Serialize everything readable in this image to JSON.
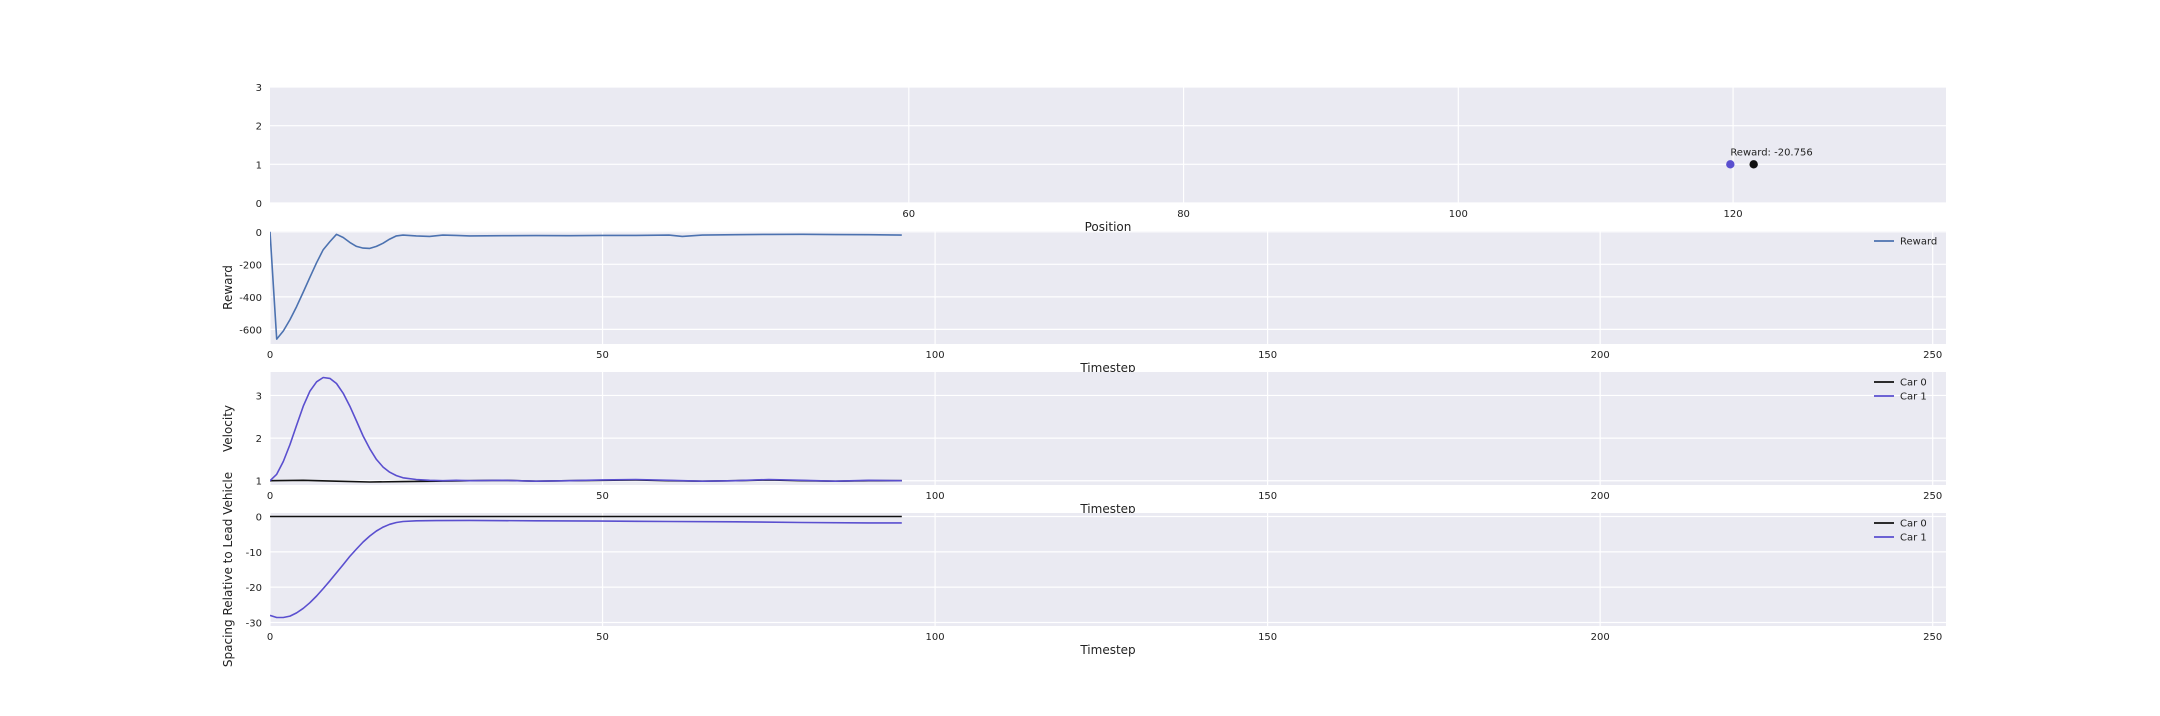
{
  "chart_data": [
    {
      "type": "scatter",
      "xlabel": "Position",
      "ylabel": "",
      "xlim": [
        13.5,
        135.5
      ],
      "ylim": [
        0,
        3
      ],
      "xticks": [
        60,
        80,
        100,
        120
      ],
      "yticks": [
        0,
        1,
        2,
        3
      ],
      "grid": true,
      "points": [
        {
          "x": 119.8,
          "y": 1,
          "color": "#5a4fcf"
        },
        {
          "x": 121.5,
          "y": 1,
          "color": "#111111"
        }
      ],
      "annotation": {
        "text": "Reward: -20.756",
        "x": 119.8,
        "y": 1.12
      }
    },
    {
      "type": "line",
      "xlabel": "Timestep",
      "ylabel": "Reward",
      "xlim": [
        0,
        252
      ],
      "ylim": [
        -690,
        5
      ],
      "xticks": [
        0,
        50,
        100,
        150,
        200,
        250
      ],
      "yticks": [
        0,
        -200,
        -400,
        -600
      ],
      "grid": true,
      "legend": "top-right",
      "series": [
        {
          "name": "Reward",
          "color": "#4c72b0",
          "x": [
            0,
            1,
            2,
            3,
            4,
            5,
            6,
            7,
            8,
            9,
            10,
            11,
            12,
            13,
            14,
            15,
            16,
            17,
            18,
            19,
            20,
            22,
            24,
            26,
            28,
            30,
            35,
            40,
            45,
            50,
            55,
            60,
            62,
            65,
            70,
            75,
            80,
            85,
            90,
            95
          ],
          "y": [
            0,
            -660,
            -610,
            -540,
            -460,
            -370,
            -280,
            -190,
            -110,
            -60,
            -15,
            -35,
            -65,
            -90,
            -100,
            -102,
            -90,
            -70,
            -45,
            -25,
            -20,
            -25,
            -28,
            -20,
            -22,
            -25,
            -24,
            -23,
            -24,
            -22,
            -22,
            -20,
            -28,
            -20,
            -18,
            -16,
            -15,
            -17,
            -18,
            -20
          ]
        }
      ]
    },
    {
      "type": "line",
      "xlabel": "Timestep",
      "ylabel": "Velocity",
      "xlim": [
        0,
        252
      ],
      "ylim": [
        0.9,
        3.55
      ],
      "xticks": [
        0,
        50,
        100,
        150,
        200,
        250
      ],
      "yticks": [
        1,
        2,
        3
      ],
      "grid": true,
      "legend": "top-right",
      "series": [
        {
          "name": "Car 0",
          "color": "#111111",
          "x": [
            0,
            5,
            10,
            15,
            20,
            25,
            30,
            35,
            40,
            45,
            50,
            55,
            60,
            65,
            70,
            75,
            80,
            85,
            90,
            95
          ],
          "y": [
            1.0,
            1.01,
            0.99,
            0.97,
            0.98,
            0.99,
            1.0,
            1.01,
            0.99,
            1.0,
            1.01,
            1.02,
            1.0,
            0.99,
            1.0,
            1.02,
            1.0,
            0.99,
            1.0,
            1.0
          ]
        },
        {
          "name": "Car 1",
          "color": "#5a4fcf",
          "x": [
            0,
            1,
            2,
            3,
            4,
            5,
            6,
            7,
            8,
            9,
            10,
            11,
            12,
            13,
            14,
            15,
            16,
            17,
            18,
            19,
            20,
            22,
            24,
            26,
            28,
            30,
            35,
            40,
            45,
            50,
            55,
            60,
            65,
            70,
            75,
            80,
            85,
            90,
            95
          ],
          "y": [
            1.0,
            1.15,
            1.45,
            1.85,
            2.3,
            2.75,
            3.1,
            3.32,
            3.42,
            3.4,
            3.28,
            3.05,
            2.75,
            2.4,
            2.05,
            1.75,
            1.5,
            1.32,
            1.2,
            1.12,
            1.07,
            1.03,
            1.01,
            1.0,
            1.01,
            1.0,
            1.01,
            0.99,
            1.0,
            1.02,
            1.03,
            1.01,
            0.99,
            1.0,
            1.03,
            1.01,
            0.99,
            1.01,
            1.0
          ]
        }
      ]
    },
    {
      "type": "line",
      "xlabel": "Timestep",
      "ylabel": "Spacing Relative to Lead Vehicle",
      "xlim": [
        0,
        252
      ],
      "ylim": [
        -31,
        1
      ],
      "xticks": [
        0,
        50,
        100,
        150,
        200,
        250
      ],
      "yticks": [
        0,
        -10,
        -20,
        -30
      ],
      "grid": true,
      "legend": "top-right",
      "series": [
        {
          "name": "Car 0",
          "color": "#111111",
          "x": [
            0,
            95
          ],
          "y": [
            0,
            0
          ]
        },
        {
          "name": "Car 1",
          "color": "#5a4fcf",
          "x": [
            0,
            1,
            2,
            3,
            4,
            5,
            6,
            7,
            8,
            9,
            10,
            11,
            12,
            13,
            14,
            15,
            16,
            17,
            18,
            19,
            20,
            22,
            25,
            30,
            40,
            50,
            60,
            70,
            80,
            90,
            95
          ],
          "y": [
            -28,
            -28.6,
            -28.6,
            -28.2,
            -27.3,
            -26,
            -24.4,
            -22.5,
            -20.4,
            -18.2,
            -15.9,
            -13.6,
            -11.3,
            -9.2,
            -7.2,
            -5.5,
            -4.1,
            -3.0,
            -2.2,
            -1.7,
            -1.4,
            -1.2,
            -1.15,
            -1.1,
            -1.2,
            -1.3,
            -1.4,
            -1.5,
            -1.7,
            -1.8,
            -1.8
          ]
        }
      ]
    }
  ]
}
